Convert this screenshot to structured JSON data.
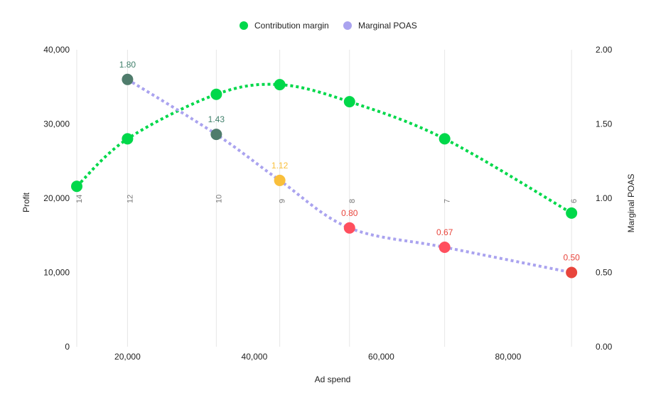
{
  "chart_data": {
    "type": "line",
    "xlabel": "Ad spend",
    "ylabel": "Profit",
    "y2label": "Marginal POAS",
    "xlim": [
      12000,
      92000
    ],
    "ylim": [
      0,
      40000
    ],
    "y2lim": [
      0,
      2
    ],
    "x_ticks": [
      "20,000",
      "40,000",
      "60,000",
      "80,000"
    ],
    "x_tick_values": [
      20000,
      40000,
      60000,
      80000
    ],
    "y_ticks": [
      "0",
      "10,000",
      "20,000",
      "30,000",
      "40,000"
    ],
    "y_tick_values": [
      0,
      10000,
      20000,
      30000,
      40000
    ],
    "y2_ticks": [
      "0.00",
      "0.50",
      "1.00",
      "1.50",
      "2.00"
    ],
    "y2_tick_values": [
      0,
      0.5,
      1,
      1.5,
      2
    ],
    "grid": "vertical",
    "legend_position": "top",
    "x": [
      12000,
      20000,
      34000,
      44000,
      55000,
      70000,
      90000
    ],
    "vertical_labels": [
      "14",
      "12",
      "10",
      "9",
      "8",
      "7",
      "6"
    ],
    "series": [
      {
        "name": "Contribution margin",
        "axis": "left",
        "color": "#00d84a",
        "x": [
          12000,
          20000,
          34000,
          44000,
          55000,
          70000,
          90000
        ],
        "values": [
          21600,
          28000,
          34000,
          35300,
          33000,
          28000,
          18000
        ]
      },
      {
        "name": "Marginal POAS",
        "axis": "right",
        "color": "#aaa3ef",
        "x": [
          20000,
          34000,
          44000,
          55000,
          70000,
          90000
        ],
        "values": [
          1.8,
          1.43,
          1.12,
          0.8,
          0.67,
          0.5
        ],
        "labels": [
          "1.80",
          "1.43",
          "1.12",
          "0.80",
          "0.67",
          "0.50"
        ],
        "point_colors": [
          "#4f7c6c",
          "#4f7c6c",
          "#f9bf3b",
          "#ff4f5e",
          "#ff4f5e",
          "#e8453c"
        ],
        "label_colors": [
          "#3f7f6a",
          "#3f7f6a",
          "#f9bf3b",
          "#e8453c",
          "#e8453c",
          "#e8453c"
        ]
      }
    ]
  }
}
